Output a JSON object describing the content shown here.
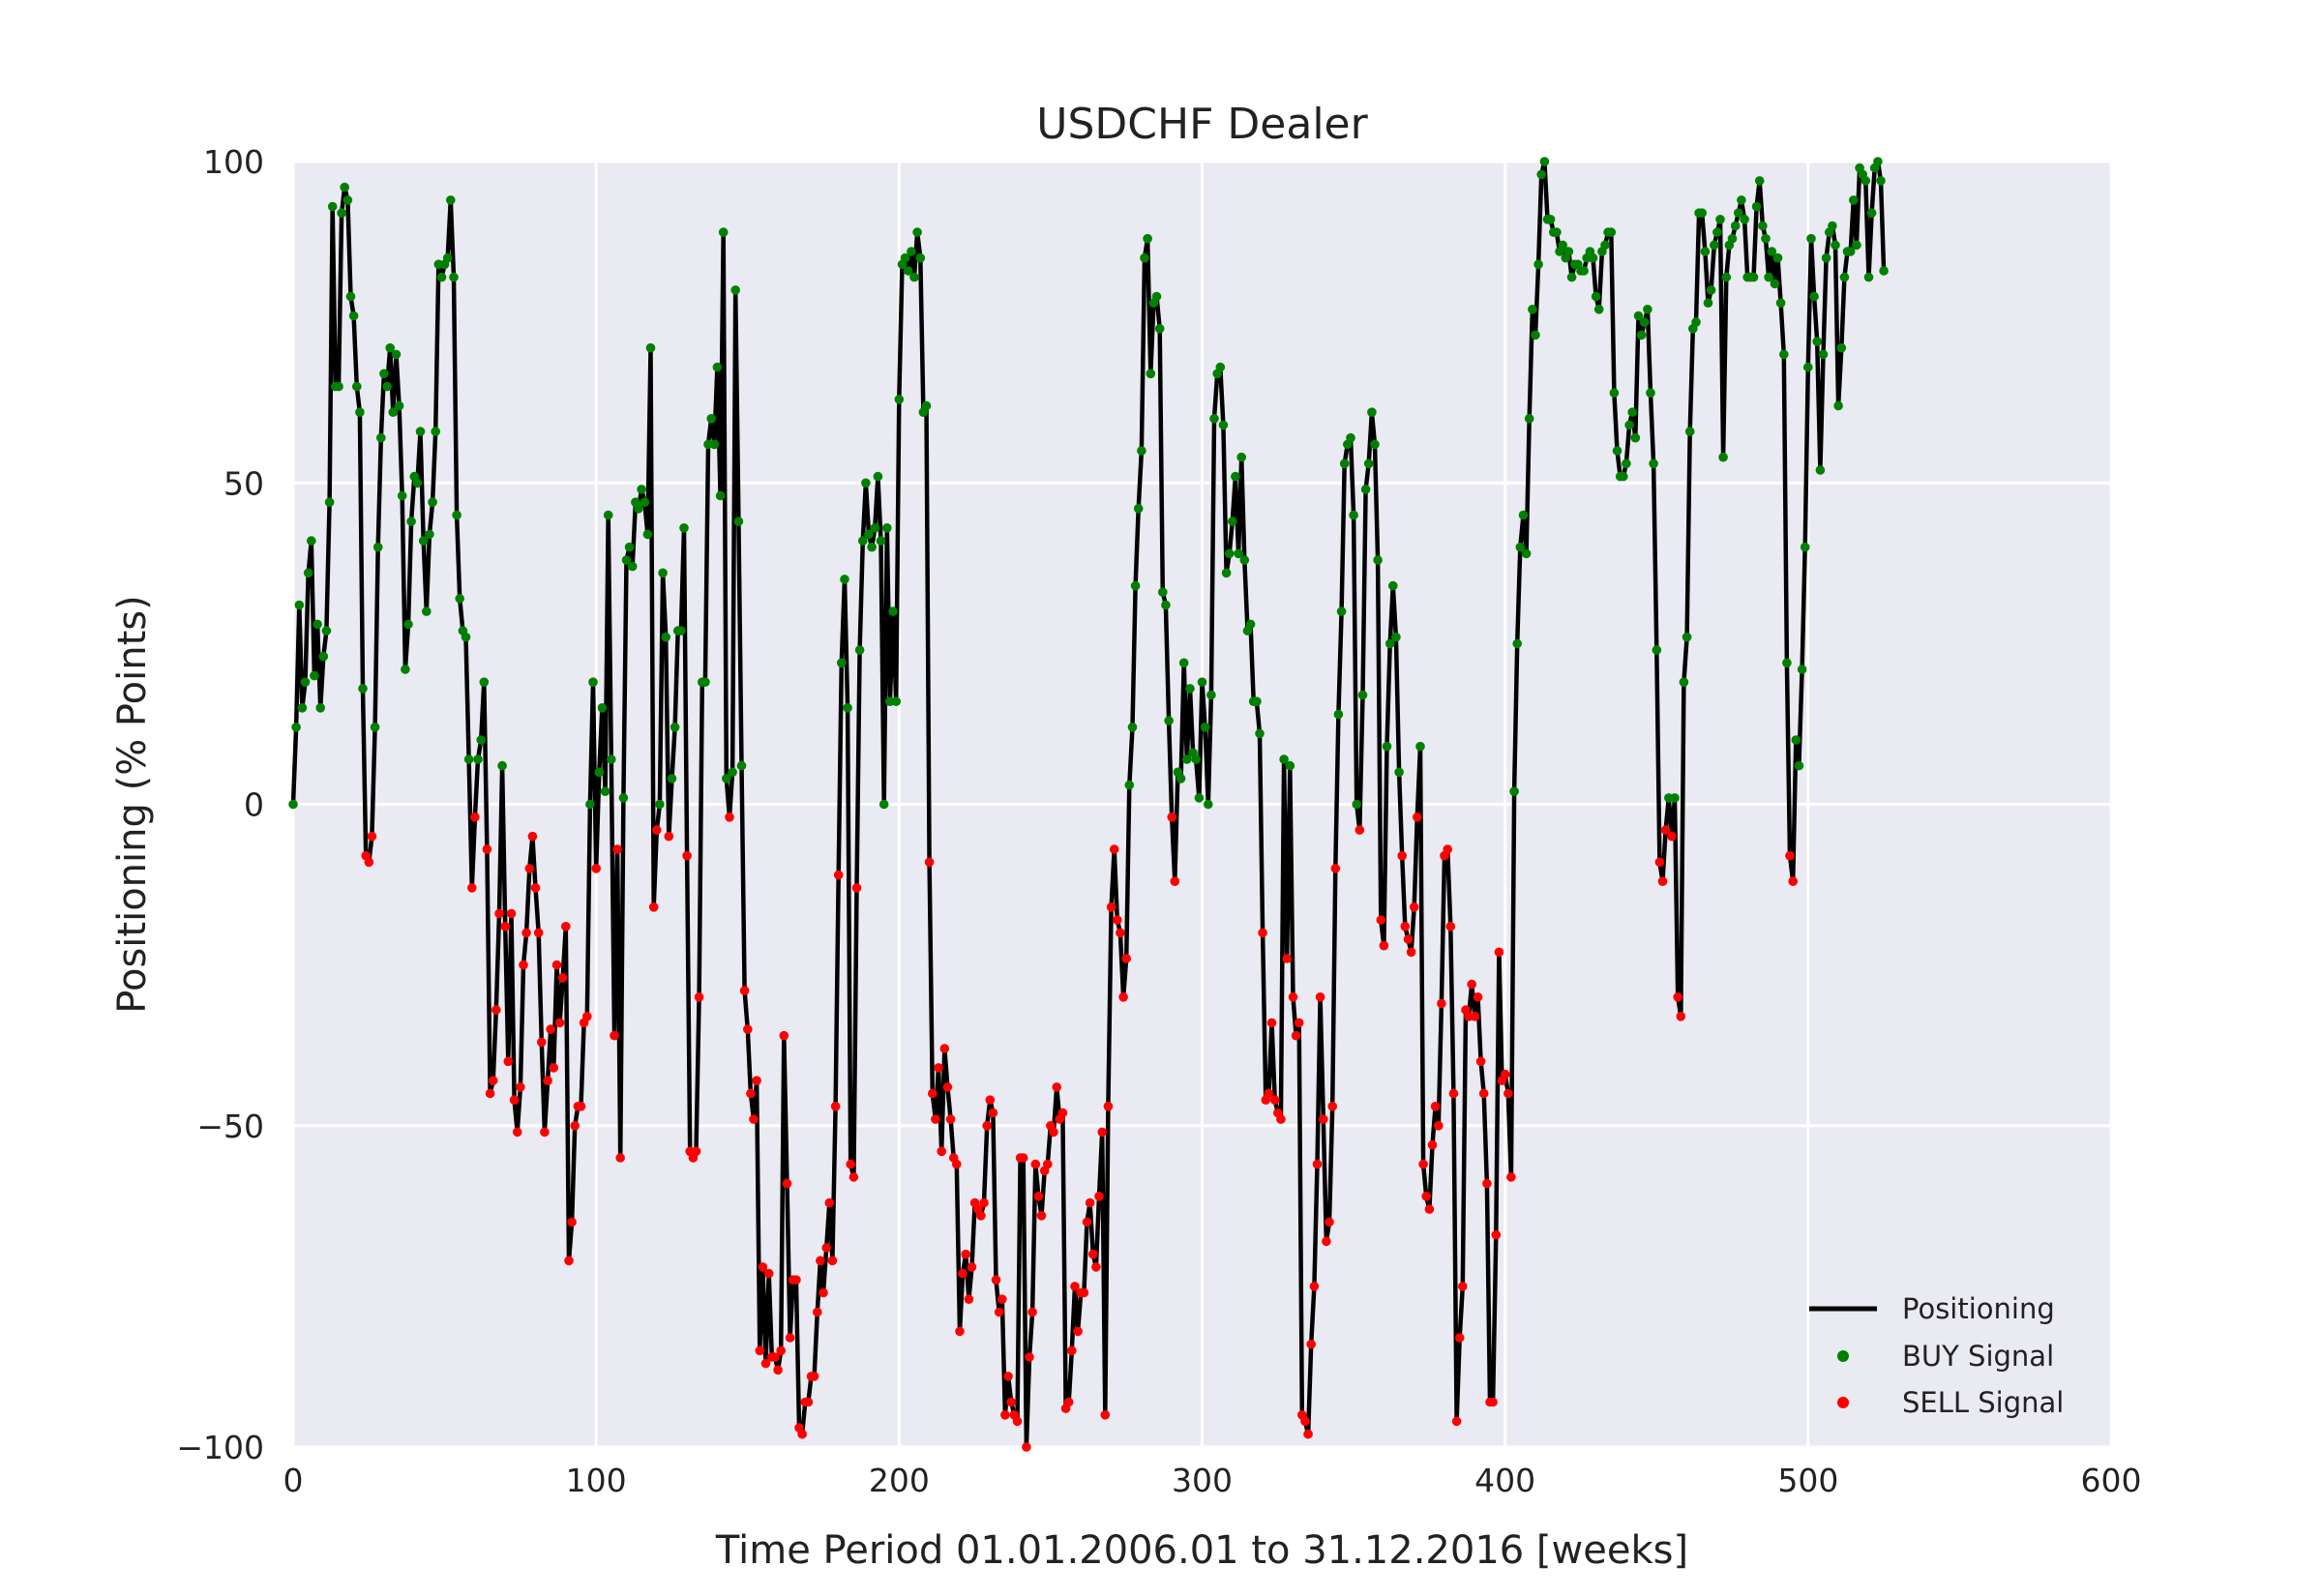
{
  "chart_data": {
    "type": "line",
    "title": "USDCHF Dealer",
    "xlabel": "Time Period 01.01.2006.01 to 31.12.2016 [weeks]",
    "ylabel": "Positioning (% Points)",
    "xlim": [
      0,
      600
    ],
    "ylim": [
      -100,
      100
    ],
    "x_ticks": [
      0,
      100,
      200,
      300,
      400,
      500,
      600
    ],
    "x_tick_labels": [
      "0",
      "100",
      "200",
      "300",
      "400",
      "500",
      "600"
    ],
    "y_ticks": [
      -100,
      -50,
      0,
      50,
      100
    ],
    "y_tick_labels": [
      "−100",
      "−50",
      "0",
      "50",
      "100"
    ],
    "grid": true,
    "legend_position": "bottom-right",
    "legend": [
      "Positioning",
      "BUY Signal",
      "SELL Signal"
    ],
    "colors": {
      "line": "#000000",
      "buy": "#008000",
      "sell": "#ff0000",
      "plot_background": "#eaeaf2",
      "grid": "#ffffff"
    },
    "signal_rule": "BUY when positioning >= 0, SELL when positioning < 0",
    "x_start": 0,
    "x_step": 1,
    "series": [
      {
        "name": "Positioning",
        "values": [
          0,
          12,
          31,
          15,
          19,
          36,
          41,
          20,
          28,
          15,
          23,
          27,
          47,
          93,
          65,
          65,
          92,
          96,
          94,
          79,
          76,
          65,
          61,
          18,
          -8,
          -9,
          -5,
          12,
          40,
          57,
          67,
          65,
          71,
          61,
          70,
          62,
          48,
          21,
          28,
          44,
          51,
          50,
          58,
          41,
          30,
          42,
          47,
          58,
          84,
          82,
          84,
          85,
          94,
          82,
          45,
          32,
          27,
          26,
          7,
          -13,
          -2,
          7,
          10,
          19,
          -7,
          -45,
          -43,
          -32,
          -17,
          6,
          -19,
          -40,
          -17,
          -46,
          -51,
          -44,
          -25,
          -20,
          -10,
          -5,
          -13,
          -20,
          -37,
          -51,
          -43,
          -35,
          -41,
          -25,
          -34,
          -27,
          -19,
          -71,
          -65,
          -50,
          -47,
          -47,
          -34,
          -33,
          0,
          19,
          -10,
          5,
          15,
          2,
          45,
          7,
          -36,
          -7,
          -55,
          1,
          38,
          40,
          37,
          47,
          46,
          49,
          47,
          42,
          71,
          -16,
          -4,
          0,
          36,
          26,
          -5,
          4,
          12,
          27,
          27,
          43,
          -8,
          -54,
          -55,
          -54,
          -30,
          19,
          19,
          56,
          60,
          56,
          68,
          48,
          89,
          4,
          -2,
          5,
          80,
          44,
          6,
          -29,
          -35,
          -45,
          -49,
          -43,
          -85,
          -72,
          -87,
          -73,
          -86,
          -86,
          -88,
          -85,
          -36,
          -59,
          -83,
          -74,
          -74,
          -97,
          -98,
          -93,
          -93,
          -89,
          -89,
          -79,
          -71,
          -76,
          -69,
          -62,
          -71,
          -47,
          -11,
          22,
          35,
          15,
          -56,
          -58,
          -13,
          24,
          41,
          50,
          42,
          40,
          43,
          51,
          41,
          0,
          43,
          16,
          30,
          16,
          63,
          84,
          85,
          83,
          86,
          82,
          89,
          85,
          61,
          62,
          -9,
          -45,
          -49,
          -41,
          -54,
          -38,
          -44,
          -49,
          -55,
          -56,
          -82,
          -73,
          -70,
          -77,
          -72,
          -62,
          -63,
          -64,
          -62,
          -50,
          -46,
          -48,
          -74,
          -79,
          -77,
          -95,
          -89,
          -93,
          -95,
          -96,
          -55,
          -55,
          -100,
          -86,
          -79,
          -56,
          -61,
          -64,
          -57,
          -56,
          -50,
          -51,
          -44,
          -49,
          -48,
          -94,
          -93,
          -85,
          -75,
          -82,
          -76,
          -76,
          -65,
          -62,
          -70,
          -72,
          -61,
          -51,
          -95,
          -47,
          -16,
          -7,
          -18,
          -20,
          -30,
          -24,
          3,
          12,
          34,
          46,
          55,
          85,
          88,
          67,
          78,
          79,
          74,
          33,
          31,
          13,
          -2,
          -12,
          5,
          4,
          22,
          7,
          18,
          8,
          7,
          1,
          19,
          12,
          0,
          17,
          60,
          67,
          68,
          59,
          36,
          39,
          44,
          51,
          39,
          54,
          38,
          27,
          28,
          16,
          16,
          11,
          -20,
          -46,
          -45,
          -34,
          -46,
          -48,
          -49,
          7,
          -24,
          6,
          -30,
          -36,
          -34,
          -95,
          -96,
          -98,
          -84,
          -75,
          -56,
          -30,
          -49,
          -68,
          -65,
          -47,
          -10,
          14,
          30,
          53,
          56,
          57,
          45,
          0,
          -4,
          17,
          49,
          53,
          61,
          56,
          38,
          -18,
          -22,
          9,
          25,
          34,
          26,
          5,
          -8,
          -19,
          -21,
          -23,
          -16,
          -2,
          9,
          -56,
          -61,
          -63,
          -53,
          -47,
          -50,
          -31,
          -8,
          -7,
          -19,
          -45,
          -96,
          -83,
          -75,
          -32,
          -33,
          -28,
          -33,
          -30,
          -40,
          -45,
          -59,
          -93,
          -93,
          -67,
          -23,
          -43,
          -42,
          -45,
          -58,
          2,
          25,
          40,
          45,
          39,
          60,
          77,
          73,
          84,
          98,
          100,
          91,
          91,
          89,
          89,
          86,
          87,
          85,
          86,
          82,
          84,
          84,
          83,
          83,
          85,
          86,
          85,
          79,
          77,
          86,
          87,
          89,
          89,
          64,
          55,
          51,
          51,
          53,
          59,
          61,
          57,
          76,
          73,
          75,
          77,
          64,
          53,
          24,
          -9,
          -12,
          -4,
          1,
          -5,
          1,
          -30,
          -33,
          19,
          26,
          58,
          74,
          75,
          92,
          92,
          86,
          78,
          80,
          87,
          89,
          91,
          54,
          82,
          87,
          88,
          90,
          92,
          94,
          91,
          82,
          82,
          82,
          93,
          97,
          90,
          88,
          82,
          86,
          81,
          85,
          78,
          70,
          22,
          -8,
          -12,
          10,
          6,
          21,
          40,
          68,
          88,
          79,
          72,
          52,
          70,
          85,
          89,
          90,
          87,
          62,
          71,
          82,
          86,
          86,
          94,
          87,
          99,
          98,
          97,
          82,
          92,
          99,
          100,
          97,
          83
        ]
      }
    ]
  }
}
